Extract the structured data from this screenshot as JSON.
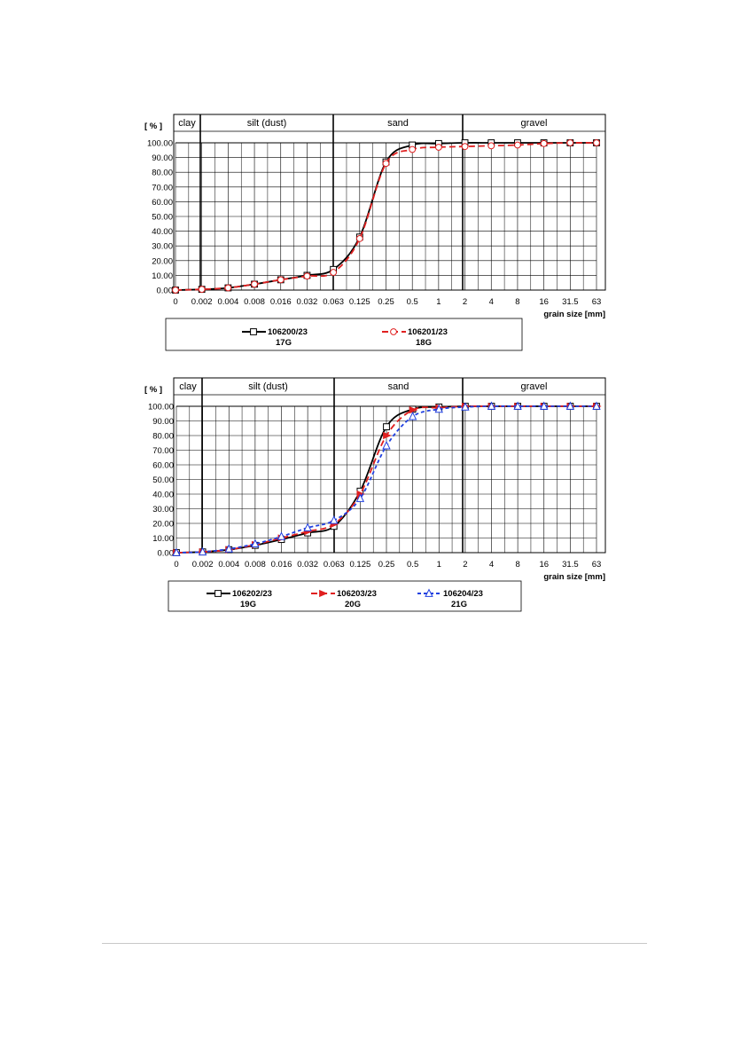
{
  "chart_data": [
    {
      "type": "line",
      "ylabel": "[ % ]",
      "xlabel": "grain size [mm]",
      "x_ticks": [
        "0",
        "0.002",
        "0.004",
        "0.008",
        "0.016",
        "0.032",
        "0.063",
        "0.125",
        "0.25",
        "0.5",
        "1",
        "2",
        "4",
        "8",
        "16",
        "31.5",
        "63"
      ],
      "y_ticks": [
        "0.00",
        "10.00",
        "20.00",
        "30.00",
        "40.00",
        "50.00",
        "60.00",
        "70.00",
        "80.00",
        "90.00",
        "100.00"
      ],
      "ylim": [
        0,
        100
      ],
      "grid": true,
      "zones": [
        "clay",
        "silt (dust)",
        "sand",
        "gravel"
      ],
      "series": [
        {
          "name": "106200/23",
          "sample": "17G",
          "color": "#000000",
          "dash": "solid",
          "marker": "square",
          "x": [
            "0",
            "0.002",
            "0.004",
            "0.008",
            "0.016",
            "0.032",
            "0.063",
            "0.125",
            "0.25",
            "0.5",
            "1",
            "2",
            "4",
            "8",
            "16",
            "31.5",
            "63"
          ],
          "values": [
            0,
            0.5,
            1.5,
            4.0,
            7.0,
            10.0,
            14.0,
            36.0,
            87.0,
            98.5,
            99.5,
            100,
            100,
            100,
            100,
            100,
            100
          ]
        },
        {
          "name": "106201/23",
          "sample": "18G",
          "color": "#e02020",
          "dash": "dashed",
          "marker": "circle",
          "x": [
            "0",
            "0.002",
            "0.004",
            "0.008",
            "0.016",
            "0.032",
            "0.063",
            "0.125",
            "0.25",
            "0.5",
            "1",
            "2",
            "4",
            "8",
            "16",
            "31.5",
            "63"
          ],
          "values": [
            0,
            0.5,
            1.5,
            4.0,
            7.0,
            9.5,
            12.0,
            35.0,
            86.0,
            95.5,
            97.0,
            97.5,
            98.0,
            98.5,
            99.5,
            100,
            100
          ]
        }
      ]
    },
    {
      "type": "line",
      "ylabel": "[ % ]",
      "xlabel": "grain size [mm]",
      "x_ticks": [
        "0",
        "0.002",
        "0.004",
        "0.008",
        "0.016",
        "0.032",
        "0.063",
        "0.125",
        "0.25",
        "0.5",
        "1",
        "2",
        "4",
        "8",
        "16",
        "31.5",
        "63"
      ],
      "y_ticks": [
        "0.00",
        "10.00",
        "20.00",
        "30.00",
        "40.00",
        "50.00",
        "60.00",
        "70.00",
        "80.00",
        "90.00",
        "100.00"
      ],
      "ylim": [
        0,
        100
      ],
      "grid": true,
      "zones": [
        "clay",
        "silt (dust)",
        "sand",
        "gravel"
      ],
      "series": [
        {
          "name": "106202/23",
          "sample": "19G",
          "color": "#000000",
          "dash": "solid",
          "marker": "square",
          "x": [
            "0",
            "0.002",
            "0.004",
            "0.008",
            "0.016",
            "0.032",
            "0.063",
            "0.125",
            "0.25",
            "0.5",
            "1",
            "2",
            "4",
            "8",
            "16",
            "31.5",
            "63"
          ],
          "values": [
            0,
            0.5,
            2.0,
            5.0,
            9.0,
            13.5,
            18.0,
            42.0,
            86.0,
            98.0,
            99.5,
            100,
            100,
            100,
            100,
            100,
            100
          ]
        },
        {
          "name": "106203/23",
          "sample": "20G",
          "color": "#e02020",
          "dash": "dashed",
          "marker": "arrow",
          "x": [
            "0",
            "0.002",
            "0.004",
            "0.008",
            "0.016",
            "0.032",
            "0.063",
            "0.125",
            "0.25",
            "0.5",
            "1",
            "2",
            "4",
            "8",
            "16",
            "31.5",
            "63"
          ],
          "values": [
            0,
            0.5,
            2.0,
            5.5,
            10.0,
            14.5,
            19.5,
            40.0,
            80.0,
            97.5,
            99.0,
            100,
            100,
            100,
            100,
            100,
            100
          ]
        },
        {
          "name": "106204/23",
          "sample": "21G",
          "color": "#2040e0",
          "dash": "dotted",
          "marker": "triangle",
          "x": [
            "0",
            "0.002",
            "0.004",
            "0.008",
            "0.016",
            "0.032",
            "0.063",
            "0.125",
            "0.25",
            "0.5",
            "1",
            "2",
            "4",
            "8",
            "16",
            "31.5",
            "63"
          ],
          "values": [
            0,
            0.5,
            2.5,
            6.0,
            11.0,
            17.0,
            22.0,
            37.0,
            73.0,
            93.0,
            98.0,
            99.5,
            100,
            100,
            100,
            100,
            100
          ]
        }
      ]
    }
  ]
}
